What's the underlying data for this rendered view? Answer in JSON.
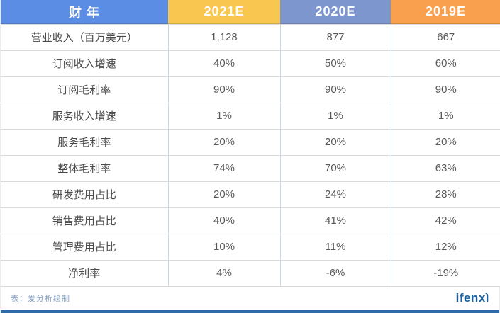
{
  "chart_data": {
    "type": "table",
    "title": "财 年",
    "columns": [
      "2021E",
      "2020E",
      "2019E"
    ],
    "rows": [
      {
        "label": "营业收入（百万美元）",
        "values": [
          "1,128",
          "877",
          "667"
        ]
      },
      {
        "label": "订阅收入增速",
        "values": [
          "40%",
          "50%",
          "60%"
        ]
      },
      {
        "label": "订阅毛利率",
        "values": [
          "90%",
          "90%",
          "90%"
        ]
      },
      {
        "label": "服务收入增速",
        "values": [
          "1%",
          "1%",
          "1%"
        ]
      },
      {
        "label": "服务毛利率",
        "values": [
          "20%",
          "20%",
          "20%"
        ]
      },
      {
        "label": "整体毛利率",
        "values": [
          "74%",
          "70%",
          "63%"
        ]
      },
      {
        "label": "研发费用占比",
        "values": [
          "20%",
          "24%",
          "28%"
        ]
      },
      {
        "label": "销售费用占比",
        "values": [
          "40%",
          "41%",
          "42%"
        ]
      },
      {
        "label": "管理费用占比",
        "values": [
          "10%",
          "11%",
          "12%"
        ]
      },
      {
        "label": "净利率",
        "values": [
          "4%",
          "-6%",
          "-19%"
        ]
      }
    ]
  },
  "table": {
    "header": {
      "label": "财 年",
      "cols": [
        "2021E",
        "2020E",
        "2019E"
      ]
    },
    "rows": [
      {
        "label": "营业收入（百万美元）",
        "values": [
          "1,128",
          "877",
          "667"
        ]
      },
      {
        "label": "订阅收入增速",
        "values": [
          "40%",
          "50%",
          "60%"
        ]
      },
      {
        "label": "订阅毛利率",
        "values": [
          "90%",
          "90%",
          "90%"
        ]
      },
      {
        "label": "服务收入增速",
        "values": [
          "1%",
          "1%",
          "1%"
        ]
      },
      {
        "label": "服务毛利率",
        "values": [
          "20%",
          "20%",
          "20%"
        ]
      },
      {
        "label": "整体毛利率",
        "values": [
          "74%",
          "70%",
          "63%"
        ]
      },
      {
        "label": "研发费用占比",
        "values": [
          "20%",
          "24%",
          "28%"
        ]
      },
      {
        "label": "销售费用占比",
        "values": [
          "40%",
          "41%",
          "42%"
        ]
      },
      {
        "label": "管理费用占比",
        "values": [
          "10%",
          "11%",
          "12%"
        ]
      },
      {
        "label": "净利率",
        "values": [
          "4%",
          "-6%",
          "-19%"
        ]
      }
    ]
  },
  "footer": {
    "source": "表：爱分析绘制",
    "logo": "ifenxì"
  },
  "colors": {
    "header_label_blue": "#5b8de4",
    "header_2021_yellow": "#f9c64f",
    "header_2020_slate": "#7e96ce",
    "header_2019_orange": "#f9a04e",
    "row_border": "#d9d9d9",
    "column_border": "#c7d7ea",
    "label_text": "#4a4a4a",
    "value_text": "#595959",
    "source_text": "#87a3c4",
    "logo_blue": "#1a5f9e",
    "bottom_bar_blue": "#2e6ba8"
  }
}
